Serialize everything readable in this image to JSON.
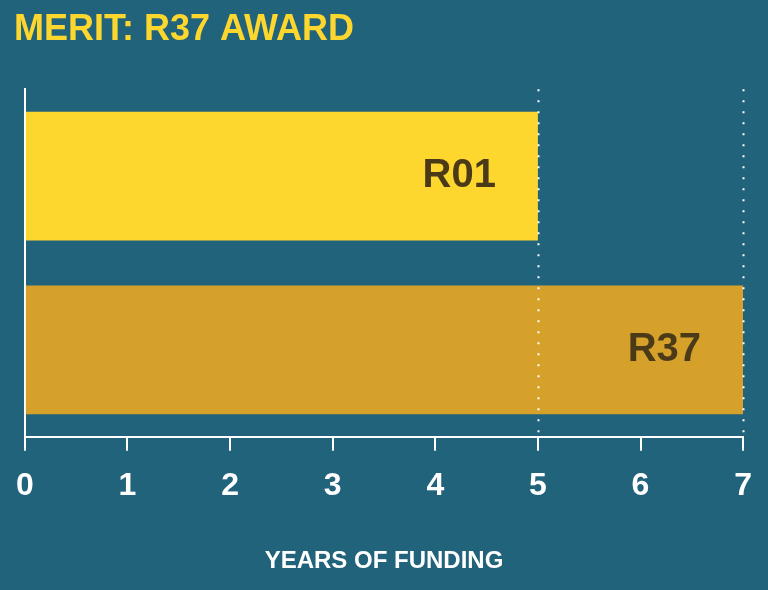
{
  "chart_data": {
    "type": "bar",
    "title": "MERIT: R37 AWARD",
    "orientation": "horizontal",
    "categories": [
      "R01",
      "R37"
    ],
    "values": [
      5,
      7
    ],
    "colors": [
      "#fdd62e",
      "#d5a12a"
    ],
    "xlabel": "YEARS OF FUNDING",
    "xlim": [
      0,
      7
    ],
    "xticks": [
      0,
      1,
      2,
      3,
      4,
      5,
      6,
      7
    ],
    "grid": false,
    "tick_labels": "x"
  }
}
